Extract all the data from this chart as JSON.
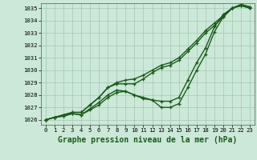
{
  "background_color": "#cce8d8",
  "grid_color": "#a0c8b0",
  "line_color": "#1a5c1a",
  "title": "Graphe pression niveau de la mer (hPa)",
  "xlim": [
    -0.5,
    23.5
  ],
  "ylim": [
    1025.6,
    1035.4
  ],
  "yticks": [
    1026,
    1027,
    1028,
    1029,
    1030,
    1031,
    1032,
    1033,
    1034,
    1035
  ],
  "xticks": [
    0,
    1,
    2,
    3,
    4,
    5,
    6,
    7,
    8,
    9,
    10,
    11,
    12,
    13,
    14,
    15,
    16,
    17,
    18,
    19,
    20,
    21,
    22,
    23
  ],
  "series": [
    [
      1026.0,
      1026.2,
      1026.3,
      1026.5,
      1026.4,
      1026.8,
      1027.2,
      1027.8,
      1028.2,
      1028.3,
      1028.0,
      1027.8,
      1027.6,
      1027.0,
      1027.0,
      1027.3,
      1028.6,
      1030.0,
      1031.3,
      1033.1,
      1034.3,
      1035.0,
      1035.2,
      1035.0
    ],
    [
      1026.0,
      1026.2,
      1026.3,
      1026.5,
      1026.4,
      1026.9,
      1027.4,
      1028.0,
      1028.4,
      1028.3,
      1028.0,
      1027.7,
      1027.6,
      1027.5,
      1027.5,
      1027.8,
      1029.2,
      1030.6,
      1031.8,
      1033.5,
      1034.5,
      1035.0,
      1035.2,
      1035.0
    ],
    [
      1026.0,
      1026.2,
      1026.4,
      1026.6,
      1026.6,
      1027.2,
      1027.8,
      1028.6,
      1029.0,
      1029.2,
      1029.3,
      1029.6,
      1030.0,
      1030.4,
      1030.6,
      1031.0,
      1031.7,
      1032.4,
      1033.2,
      1033.8,
      1034.4,
      1035.0,
      1035.3,
      1035.1
    ],
    [
      1026.0,
      1026.2,
      1026.4,
      1026.6,
      1026.6,
      1027.2,
      1027.8,
      1028.6,
      1028.9,
      1028.9,
      1028.9,
      1029.3,
      1029.8,
      1030.2,
      1030.4,
      1030.8,
      1031.5,
      1032.2,
      1033.0,
      1033.6,
      1034.3,
      1035.0,
      1035.3,
      1035.1
    ]
  ],
  "marker": "+",
  "markersize": 3.5,
  "linewidth": 1.0,
  "title_fontsize": 7.0,
  "tick_fontsize": 5.2
}
